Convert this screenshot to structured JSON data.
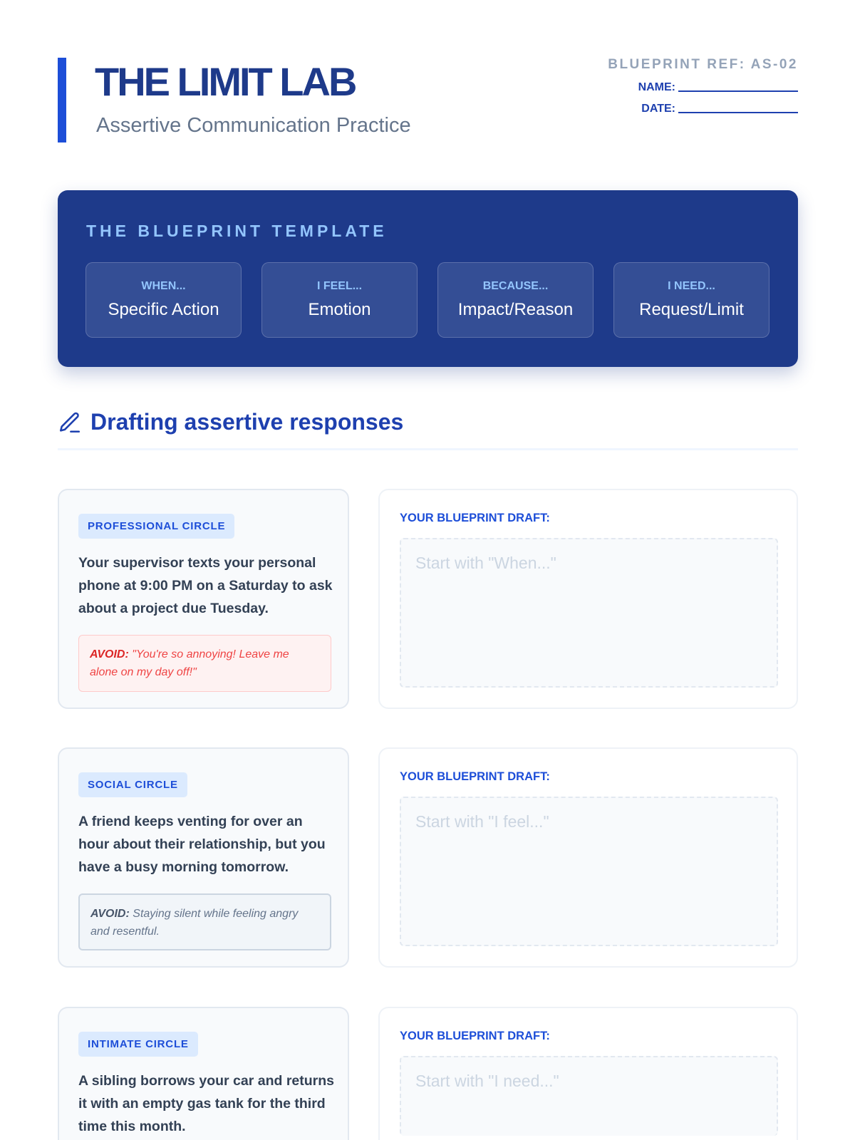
{
  "header": {
    "title": "THE LIMIT LAB",
    "subtitle": "Assertive Communication Practice",
    "ref": "BLUEPRINT REF: AS-02",
    "name_label": "NAME:",
    "date_label": "DATE:"
  },
  "template": {
    "title": "THE BLUEPRINT TEMPLATE",
    "steps": [
      {
        "key": "WHEN...",
        "value": "Specific Action"
      },
      {
        "key": "I FEEL...",
        "value": "Emotion"
      },
      {
        "key": "BECAUSE...",
        "value": "Impact/Reason"
      },
      {
        "key": "I NEED...",
        "value": "Request/Limit"
      }
    ]
  },
  "section": {
    "title": "Drafting assertive responses",
    "icon": "pencil-icon"
  },
  "scenarios": [
    {
      "tag": "PROFESSIONAL CIRCLE",
      "text": "Your supervisor texts your personal phone at 9:00 PM on a Saturday to ask about a project due Tuesday.",
      "avoid_label": "AVOID:",
      "avoid_text": "\"You're so annoying! Leave me alone on my day off!\"",
      "draft_label": "YOUR BLUEPRINT DRAFT:",
      "placeholder": "Start with \"When...\""
    },
    {
      "tag": "SOCIAL CIRCLE",
      "text": "A friend keeps venting for over an hour about their relationship, but you have a busy morning tomorrow.",
      "avoid_label": "AVOID:",
      "avoid_text": "Staying silent while feeling angry and resentful.",
      "draft_label": "YOUR BLUEPRINT DRAFT:",
      "placeholder": "Start with \"I feel...\""
    },
    {
      "tag": "INTIMATE CIRCLE",
      "text": "A sibling borrows your car and returns it with an empty gas tank for the third time this month.",
      "draft_label": "YOUR BLUEPRINT DRAFT:",
      "placeholder": "Start with \"I need...\""
    }
  ],
  "colors": {
    "primary": "#1e3a8a",
    "accent": "#1d4ed8",
    "avoid_red": "#ef4444"
  }
}
